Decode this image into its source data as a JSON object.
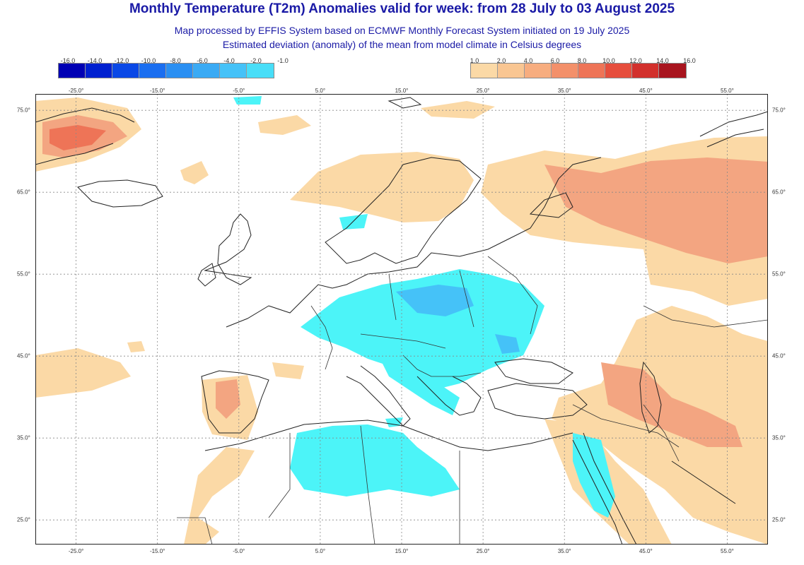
{
  "title": "Monthly Temperature (T2m) Anomalies valid for week: from 28 July to 03 August 2025",
  "subtitle_1": "Map processed by EFFIS System based on ECMWF Monthly Forecast System initiated on 19 July 2025",
  "subtitle_2": "Estimated deviation (anomaly) of the mean from model climate in Celsius degrees",
  "legend_cold": {
    "labels": [
      "-16.0",
      "-14.0",
      "-12.0",
      "-10.0",
      "-8.0",
      "-6.0",
      "-4.0",
      "-2.0",
      "-1.0"
    ],
    "colors": [
      "#0000b4",
      "#0020d0",
      "#0a48e6",
      "#1a6ef0",
      "#2a8ff2",
      "#3aaaf4",
      "#45c2f8",
      "#48def8",
      "#4cf4f8"
    ]
  },
  "legend_warm": {
    "labels": [
      "1.0",
      "2.0",
      "4.0",
      "6.0",
      "8.0",
      "10.0",
      "12.0",
      "14.0",
      "16.0"
    ],
    "colors": [
      "#fbd9a6",
      "#f9c692",
      "#f7ad7f",
      "#f3906a",
      "#ee7457",
      "#e64e3d",
      "#d2302c",
      "#a8141e"
    ]
  },
  "longitude_labels": [
    "-25.0°",
    "-15.0°",
    "-5.0°",
    "5.0°",
    "15.0°",
    "25.0°",
    "35.0°",
    "45.0°",
    "55.0°"
  ],
  "latitude_labels": [
    "75.0°",
    "65.0°",
    "55.0°",
    "45.0°",
    "35.0°",
    "25.0°"
  ],
  "map": {
    "projection": "equirectangular",
    "lon_range": [
      -30.0,
      60.0
    ],
    "lat_range": [
      22.0,
      77.0
    ],
    "grid": "dotted",
    "colors": {
      "ocean": "#ffffff",
      "coast": "#222222",
      "border": "#333333",
      "grid": "#888888",
      "warm_1": "#fbd9a6",
      "warm_2": "#f9c692",
      "warm_3": "#f3a581",
      "cold_1": "#4cf4f8",
      "cold_2": "#45c2f8"
    }
  }
}
